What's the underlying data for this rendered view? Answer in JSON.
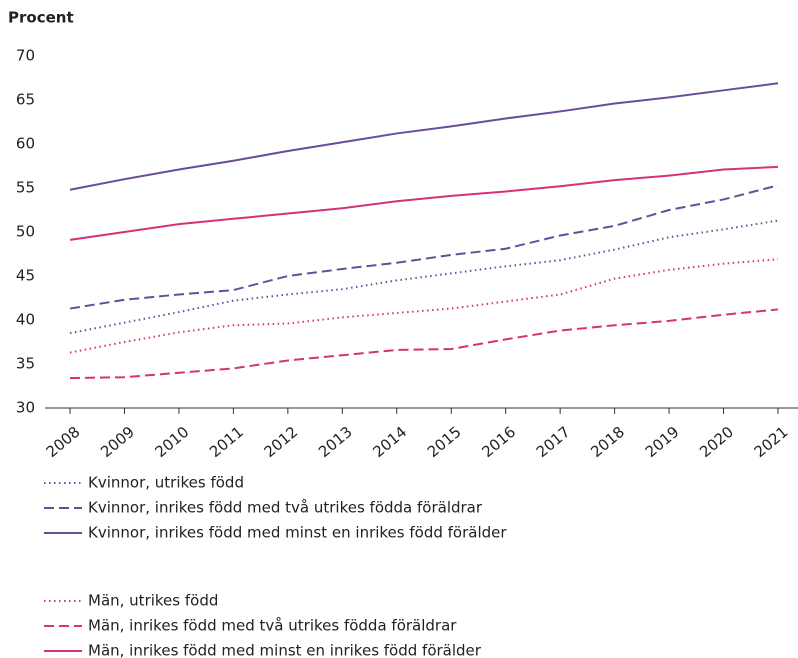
{
  "chart_data": {
    "type": "line",
    "y_label": "Procent",
    "categories": [
      "2008",
      "2009",
      "2010",
      "2011",
      "2012",
      "2013",
      "2014",
      "2015",
      "2016",
      "2017",
      "2018",
      "2019",
      "2020",
      "2021"
    ],
    "ylim": [
      30,
      70
    ],
    "yticks": [
      30,
      35,
      40,
      45,
      50,
      55,
      60,
      65,
      70
    ],
    "grid": false,
    "series": [
      {
        "name": "Kvinnor, utrikes född",
        "color": "#6a4c9c",
        "style": "dotted",
        "values": [
          38.5,
          39.7,
          40.9,
          42.2,
          42.9,
          43.5,
          44.5,
          45.3,
          46.1,
          46.8,
          48.0,
          49.4,
          50.3,
          51.3
        ]
      },
      {
        "name": "Kvinnor, inrikes född med två utrikes födda föräldrar",
        "color": "#6a4c9c",
        "style": "dashed",
        "values": [
          41.3,
          42.3,
          42.9,
          43.4,
          45.0,
          45.8,
          46.5,
          47.4,
          48.1,
          49.6,
          50.7,
          52.5,
          53.7,
          55.3
        ]
      },
      {
        "name": "Kvinnor, inrikes född med minst en inrikes född förälder",
        "color": "#6a4c9c",
        "style": "solid",
        "values": [
          54.8,
          56.0,
          57.1,
          58.1,
          59.2,
          60.2,
          61.2,
          62.0,
          62.9,
          63.7,
          64.6,
          65.3,
          66.1,
          66.9
        ]
      },
      {
        "name": "Män, utrikes född",
        "color": "#d6317a",
        "style": "dotted",
        "values": [
          36.3,
          37.5,
          38.6,
          39.4,
          39.6,
          40.3,
          40.8,
          41.3,
          42.1,
          42.9,
          44.7,
          45.7,
          46.4,
          46.9
        ]
      },
      {
        "name": "Män, inrikes född med två utrikes födda föräldrar",
        "color": "#d6317a",
        "style": "dashed",
        "values": [
          33.4,
          33.5,
          34.0,
          34.5,
          35.4,
          36.0,
          36.6,
          36.7,
          37.8,
          38.8,
          39.4,
          39.9,
          40.6,
          41.2
        ]
      },
      {
        "name": "Män, inrikes född med minst en inrikes född förälder",
        "color": "#d6317a",
        "style": "solid",
        "values": [
          49.1,
          50.0,
          50.9,
          51.5,
          52.1,
          52.7,
          53.5,
          54.1,
          54.6,
          55.2,
          55.9,
          56.4,
          57.1,
          57.4
        ]
      }
    ]
  }
}
